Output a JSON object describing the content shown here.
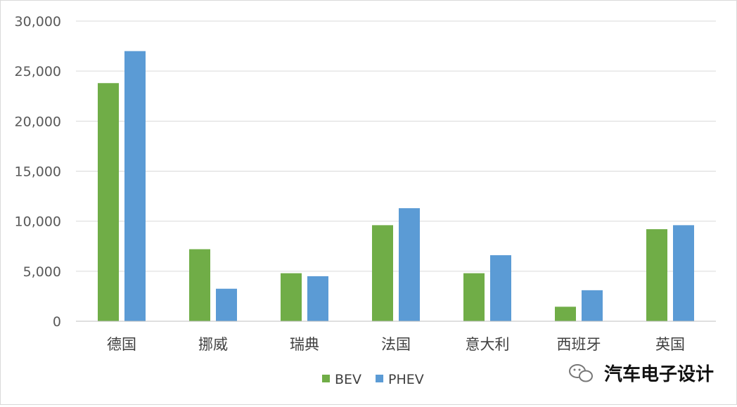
{
  "chart_data": {
    "type": "bar",
    "categories": [
      "德国",
      "挪威",
      "瑞典",
      "法国",
      "意大利",
      "西班牙",
      "英国"
    ],
    "series": [
      {
        "name": "BEV",
        "color": "#70ad47",
        "values": [
          23800,
          7200,
          4800,
          9600,
          4800,
          1450,
          9200
        ]
      },
      {
        "name": "PHEV",
        "color": "#5b9bd5",
        "values": [
          27000,
          3250,
          4500,
          11300,
          6600,
          3100,
          9600
        ]
      }
    ],
    "ylim": [
      0,
      30000
    ],
    "yticks": [
      0,
      5000,
      10000,
      15000,
      20000,
      25000,
      30000
    ],
    "ytick_labels": [
      "0",
      "5,000",
      "10,000",
      "15,000",
      "20,000",
      "25,000",
      "30,000"
    ],
    "grid": true,
    "legend_position": "bottom",
    "title": "",
    "xlabel": "",
    "ylabel": ""
  },
  "watermark": {
    "text": "汽车电子设计",
    "icon": "wechat-logo-icon"
  }
}
